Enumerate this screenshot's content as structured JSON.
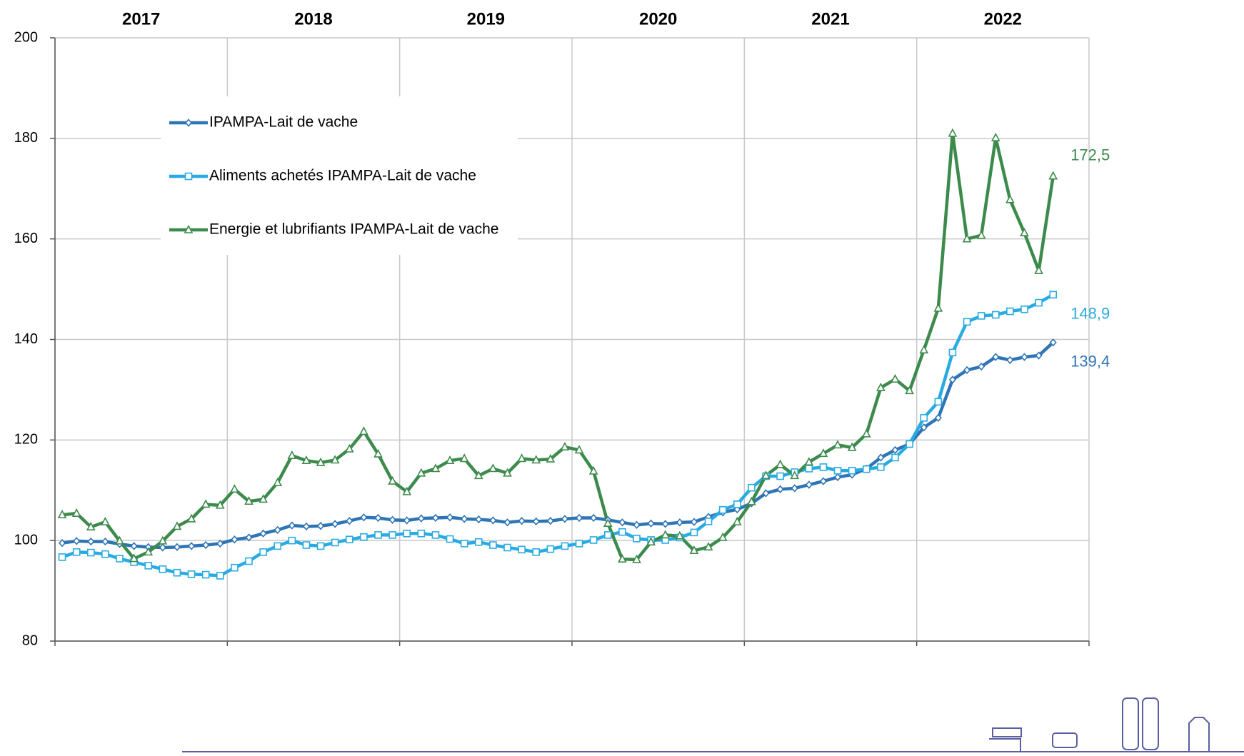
{
  "chart_data": {
    "type": "line",
    "years": [
      "2017",
      "2018",
      "2019",
      "2020",
      "2021",
      "2022"
    ],
    "ylim": [
      80,
      200
    ],
    "yticks": [
      80,
      100,
      120,
      140,
      160,
      180,
      200
    ],
    "grid": true,
    "legend": "upper left",
    "series": [
      {
        "name": "IPAMPA-Lait de vache",
        "color": "#2e75b6",
        "marker": "diamond",
        "values": [
          99.5,
          99.9,
          99.8,
          99.8,
          99.3,
          98.9,
          98.7,
          98.6,
          98.7,
          98.9,
          99.1,
          99.4,
          100.2,
          100.6,
          101.4,
          102.1,
          103.0,
          102.8,
          102.9,
          103.3,
          103.9,
          104.6,
          104.5,
          104.1,
          104.0,
          104.4,
          104.5,
          104.6,
          104.3,
          104.2,
          104.0,
          103.6,
          103.9,
          103.8,
          103.9,
          104.3,
          104.5,
          104.5,
          104.1,
          103.6,
          103.1,
          103.4,
          103.3,
          103.6,
          103.7,
          104.7,
          105.6,
          106.2,
          107.4,
          109.4,
          110.2,
          110.4,
          111.1,
          111.8,
          112.6,
          113.1,
          114.3,
          116.5,
          118.0,
          119.2,
          122.5,
          124.4,
          132.0,
          133.9,
          134.6,
          136.5,
          135.9,
          136.5,
          136.8,
          139.4
        ],
        "value_labels": [
          null,
          null,
          null,
          null,
          null,
          null,
          null,
          null,
          null,
          null,
          null,
          null,
          null,
          null,
          null,
          null,
          null,
          null,
          null,
          null,
          null,
          null,
          null,
          null,
          null,
          null,
          null,
          null,
          null,
          null,
          null,
          null,
          null,
          null,
          null,
          null,
          null,
          null,
          null,
          null,
          null,
          null,
          null,
          null,
          null,
          null,
          null,
          null,
          null,
          null,
          null,
          null,
          null,
          null,
          null,
          null,
          null,
          null,
          null,
          null,
          null,
          null,
          null,
          null,
          null,
          null,
          null,
          null,
          null,
          "139,4"
        ]
      },
      {
        "name": "Aliments achetés IPAMPA-Lait de vache",
        "color": "#29abe2",
        "marker": "square",
        "values": [
          96.7,
          97.7,
          97.6,
          97.3,
          96.4,
          95.7,
          95.0,
          94.3,
          93.6,
          93.3,
          93.2,
          93.0,
          94.6,
          95.9,
          97.7,
          98.9,
          100.0,
          99.1,
          98.9,
          99.6,
          100.2,
          100.7,
          101.1,
          101.1,
          101.4,
          101.4,
          101.1,
          100.3,
          99.4,
          99.7,
          99.1,
          98.6,
          98.2,
          97.7,
          98.3,
          98.9,
          99.4,
          100.1,
          101.1,
          101.7,
          100.4,
          100.1,
          100.1,
          100.6,
          101.6,
          103.8,
          106.1,
          107.2,
          110.5,
          112.8,
          112.8,
          113.6,
          114.3,
          114.6,
          113.9,
          113.9,
          114.2,
          114.6,
          116.5,
          119.2,
          124.4,
          127.6,
          137.4,
          143.5,
          144.7,
          144.9,
          145.6,
          146.0,
          147.3,
          148.9
        ],
        "value_labels": [
          null,
          null,
          null,
          null,
          null,
          null,
          null,
          null,
          null,
          null,
          null,
          null,
          null,
          null,
          null,
          null,
          null,
          null,
          null,
          null,
          null,
          null,
          null,
          null,
          null,
          null,
          null,
          null,
          null,
          null,
          null,
          null,
          null,
          null,
          null,
          null,
          null,
          null,
          null,
          null,
          null,
          null,
          null,
          null,
          null,
          null,
          null,
          null,
          null,
          null,
          null,
          null,
          null,
          null,
          null,
          null,
          null,
          null,
          null,
          null,
          null,
          null,
          null,
          null,
          null,
          null,
          null,
          null,
          null,
          "148,9"
        ]
      },
      {
        "name": "Energie et lubrifiants IPAMPA-Lait de vache",
        "color": "#3c8a4c",
        "marker": "triangle",
        "values": [
          105.1,
          105.4,
          102.7,
          103.7,
          99.9,
          96.4,
          97.7,
          99.9,
          102.8,
          104.3,
          107.2,
          107.0,
          110.2,
          107.8,
          108.2,
          111.5,
          116.9,
          115.9,
          115.5,
          116.0,
          118.2,
          121.7,
          117.2,
          111.8,
          109.7,
          113.4,
          114.3,
          115.9,
          116.3,
          112.9,
          114.3,
          113.4,
          116.3,
          116.0,
          116.2,
          118.6,
          118.0,
          113.8,
          103.4,
          96.3,
          96.2,
          99.7,
          101.1,
          100.9,
          98.0,
          98.7,
          100.6,
          103.7,
          107.7,
          112.9,
          115.1,
          112.9,
          115.6,
          117.3,
          119.0,
          118.5,
          121.2,
          130.4,
          132.1,
          129.8,
          137.9,
          146.2,
          181.0,
          160.0,
          160.7,
          180.1,
          167.8,
          161.2,
          153.7,
          172.5
        ],
        "value_labels": [
          null,
          null,
          null,
          null,
          null,
          null,
          null,
          null,
          null,
          null,
          null,
          null,
          null,
          null,
          null,
          null,
          null,
          null,
          null,
          null,
          null,
          null,
          null,
          null,
          null,
          null,
          null,
          null,
          null,
          null,
          null,
          null,
          null,
          null,
          null,
          null,
          null,
          null,
          null,
          null,
          null,
          null,
          null,
          null,
          null,
          null,
          null,
          null,
          null,
          null,
          null,
          null,
          null,
          null,
          null,
          null,
          null,
          null,
          null,
          null,
          null,
          null,
          null,
          null,
          null,
          null,
          null,
          null,
          null,
          "172,5"
        ]
      }
    ]
  }
}
